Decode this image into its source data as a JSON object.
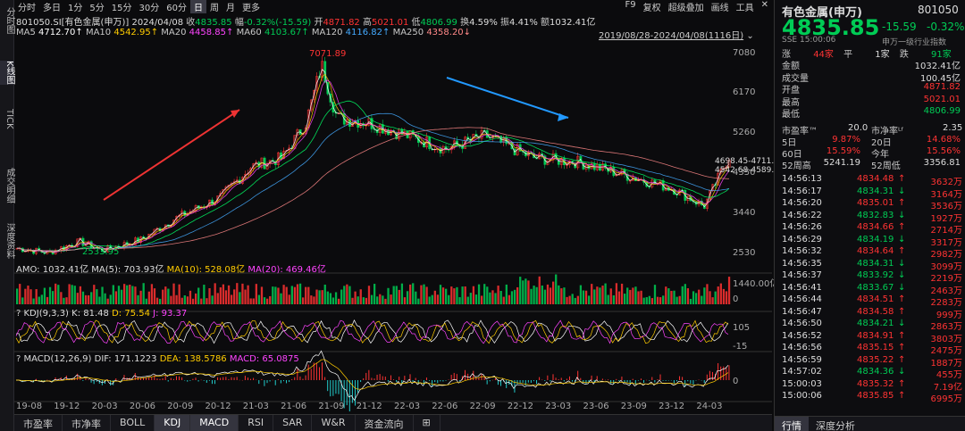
{
  "left_tabs": [
    "分时图",
    "K线图",
    "TICK",
    "成交明细",
    "深度资料"
  ],
  "toolbar": {
    "items": [
      "分时",
      "多日",
      "1分",
      "5分",
      "15分",
      "30分",
      "60分",
      "日",
      "周",
      "月",
      "更多"
    ],
    "active": "日",
    "right": [
      "F9",
      "复权",
      "超级叠加",
      "画线",
      "工具"
    ]
  },
  "info": {
    "code": "801050.SI[有色金属(申万)]",
    "date": "2024/04/08",
    "close_label": "收",
    "close": "4835.85",
    "chg_label": "幅",
    "chg": "-0.32%(-15.59)",
    "open_label": "开",
    "open": "4871.82",
    "high_label": "高",
    "high": "5021.01",
    "low_label": "低",
    "low": "4806.99",
    "turn_label": "换",
    "turn": "4.59%",
    "amp_label": "振",
    "amp": "4.41%",
    "amt_label": "额",
    "amt": "1032.41亿"
  },
  "ma": {
    "ma5": "MA5",
    "ma5v": "4712.70↑",
    "ma10": "MA10",
    "ma10v": "4542.95↑",
    "ma20": "MA20",
    "ma20v": "4458.85↑",
    "ma60": "MA60",
    "ma60v": "4103.67↑",
    "ma120": "MA120",
    "ma120v": "4116.82↑",
    "ma250": "MA250",
    "ma250v": "4358.20↓",
    "range": "2019/08/28-2024/04/08(1116日)"
  },
  "price_axis": [
    "7080",
    "6170",
    "5260",
    "4350",
    "3440",
    "2530"
  ],
  "annot": {
    "high": "7071.89",
    "low": "2533.95",
    "ma_a": "4698.45-4711.",
    "ma_b": "4542.68-4589.2"
  },
  "amo": {
    "t": "AMO: 1032.41亿",
    "ma5": "MA(5): 703.93亿",
    "ma10": "MA(10): 528.08亿",
    "ma20": "MA(20): 469.46亿",
    "axis": "1440.00亿",
    "zero": "0"
  },
  "kdj": {
    "t": "KDJ(9,3,3)",
    "k": "K: 81.48",
    "d": "D: 75.54",
    "j": "J: 93.37",
    "a1": "105",
    "a2": "-15"
  },
  "macd": {
    "t": "MACD(12,26,9)",
    "dif": "DIF: 171.1223",
    "dea": "DEA: 138.5786",
    "macd": "MACD: 65.0875",
    "axis": "0"
  },
  "x_axis": [
    "19-08",
    "19-12",
    "20-03",
    "20-06",
    "20-09",
    "20-12",
    "21-03",
    "21-06",
    "21-09",
    "21-12",
    "22-03",
    "22-06",
    "22-09",
    "22-12",
    "23-03",
    "23-06",
    "23-09",
    "23-12",
    "24-03"
  ],
  "bottom_tabs": [
    "市盈率",
    "市净率",
    "BOLL",
    "KDJ",
    "MACD",
    "RSI",
    "SAR",
    "W&R",
    "资金流向",
    "⊞"
  ],
  "bottom_active": [
    "KDJ",
    "MACD"
  ],
  "rp": {
    "name": "有色金属(申万)",
    "code": "801050",
    "price": "4835.85",
    "chg": "-15.59",
    "pct": "-0.32%",
    "ex": "SSE 15:00:06",
    "idx": "申万一级行业指数",
    "up_l": "涨",
    "up": "44家",
    "flat_l": "平",
    "flat": "1家",
    "dn_l": "跌",
    "dn": "91家",
    "fields": [
      [
        "金额",
        "1032.41亿"
      ],
      [
        "成交量",
        "100.45亿"
      ],
      [
        "开盘",
        "4871.82"
      ],
      [
        "最高",
        "5021.01"
      ],
      [
        "最低",
        "4806.99"
      ]
    ],
    "pe_l": "市盈率™",
    "pe": "20.0",
    "pb_l": "市净率ᴸᶠ",
    "pb": "2.35",
    "perf": [
      [
        "5日",
        "9.87%",
        "20日",
        "14.68%"
      ],
      [
        "60日",
        "15.59%",
        "今年",
        "15.56%"
      ],
      [
        "52周高",
        "5241.19",
        "52周低",
        "3356.81"
      ]
    ],
    "ticks": [
      [
        "14:56:13",
        "4834.48",
        "↑",
        "3632万"
      ],
      [
        "14:56:17",
        "4834.31",
        "↓",
        "3164万"
      ],
      [
        "14:56:20",
        "4835.01",
        "↑",
        "3536万"
      ],
      [
        "14:56:22",
        "4832.83",
        "↓",
        "1927万"
      ],
      [
        "14:56:26",
        "4834.66",
        "↑",
        "2714万"
      ],
      [
        "14:56:29",
        "4834.19",
        "↓",
        "3317万"
      ],
      [
        "14:56:32",
        "4834.64",
        "↑",
        "2982万"
      ],
      [
        "14:56:35",
        "4834.31",
        "↓",
        "3099万"
      ],
      [
        "14:56:37",
        "4833.92",
        "↓",
        "2219万"
      ],
      [
        "14:56:41",
        "4833.67",
        "↓",
        "2463万"
      ],
      [
        "14:56:44",
        "4834.51",
        "↑",
        "2283万"
      ],
      [
        "14:56:47",
        "4834.58",
        "↑",
        "999万"
      ],
      [
        "14:56:50",
        "4834.21",
        "↓",
        "2863万"
      ],
      [
        "14:56:52",
        "4834.91",
        "↑",
        "3803万"
      ],
      [
        "14:56:56",
        "4835.15",
        "↑",
        "2475万"
      ],
      [
        "14:56:59",
        "4835.22",
        "↑",
        "1887万"
      ],
      [
        "14:57:02",
        "4834.36",
        "↓",
        "455万"
      ],
      [
        "15:00:03",
        "4835.32",
        "↑",
        "7.19亿"
      ],
      [
        "15:00:06",
        "4835.85",
        "↑",
        "6995万"
      ]
    ],
    "tabs": [
      "行情",
      "深度分析"
    ]
  },
  "colors": {
    "up": "#ff3333",
    "down": "#00cc55",
    "ma5": "#ffffff",
    "ma10": "#ffcc00",
    "ma20": "#ff44ff",
    "ma60": "#00ff66",
    "ma120": "#44aaff",
    "ma250": "#ff8888"
  }
}
